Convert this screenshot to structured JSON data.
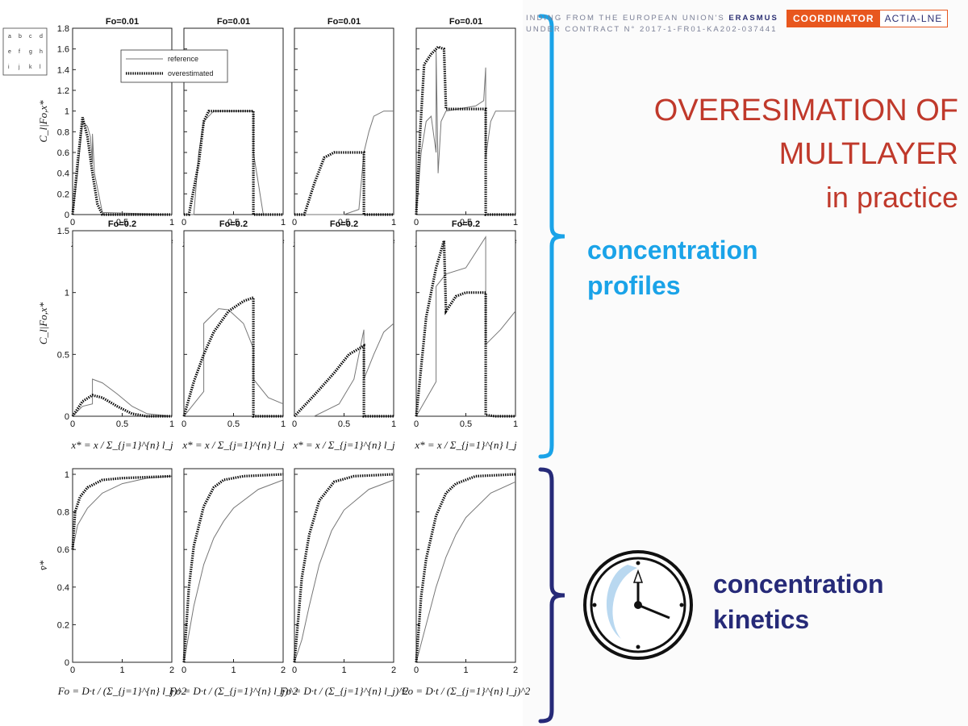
{
  "header": {
    "funding_line1_pre": "INDING FROM THE EUROPEAN UNION'S ",
    "funding_line1_bold": "ERASMUS",
    "funding_line2": "UNDER CONTRACT N° 2017-1-FR01-KA202-037441",
    "coordinator_label": "COORDINATOR",
    "coordinator_value": "ACTIA-LNE"
  },
  "slide": {
    "title_line1": "OVERESIMATION OF",
    "title_line2": "MULTLAYER",
    "title_line3": "in practice",
    "label_profiles_1": "concentration",
    "label_profiles_2": "profiles",
    "label_kinetics_1": "concentration",
    "label_kinetics_2": "kinetics"
  },
  "colors": {
    "title": "#c0392b",
    "profiles_bracket": "#1aa3e8",
    "kinetics_bracket": "#262a78",
    "accent_orange": "#e8571e"
  },
  "icons": {
    "clock": "clock-icon"
  },
  "panel_grid_letters": [
    "a",
    "b",
    "c",
    "d",
    "e",
    "f",
    "g",
    "h",
    "i",
    "j",
    "k",
    "l"
  ],
  "chart_data": {
    "type": "line",
    "legend": [
      "reference",
      "overestimated"
    ],
    "row_titles": [
      "Fo=0.01",
      "Fo=0.2",
      ""
    ],
    "ylabels": [
      "C_l|Fo,x*",
      "C_l|Fo,x*",
      "v̄*"
    ],
    "xlabels": [
      "x* = x / Σ_{j=1}^{n} l_j",
      "x* = x / Σ_{j=1}^{n} l_j",
      "Fo = D·t / (Σ_{j=1}^{n} l_j)^2"
    ],
    "xticks": [
      [
        "0",
        "0.5",
        "1"
      ],
      [
        "0",
        "0.5",
        "1"
      ],
      [
        "0",
        "1",
        "2"
      ]
    ],
    "yticks": [
      [
        "0",
        "0.2",
        "0.4",
        "0.6",
        "0.8",
        "1",
        "1.2",
        "1.4",
        "1.6",
        "1.8"
      ],
      [
        "0",
        "0.5",
        "1",
        "1.5"
      ],
      [
        "0",
        "0.2",
        "0.4",
        "0.6",
        "0.8",
        "1"
      ]
    ],
    "rows": [
      {
        "xlim": [
          0,
          1
        ],
        "ylim": [
          0,
          1.8
        ],
        "panels": [
          {
            "reference": [
              [
                0,
                0
              ],
              [
                0.05,
                0.4
              ],
              [
                0.1,
                0.9
              ],
              [
                0.15,
                0.85
              ],
              [
                0.18,
                0.75
              ],
              [
                0.2,
                0.5
              ],
              [
                0.2,
                0.78
              ],
              [
                0.22,
                0.4
              ],
              [
                0.3,
                0.02
              ],
              [
                1,
                0
              ]
            ],
            "overestimated": [
              [
                0,
                0
              ],
              [
                0.05,
                0.5
              ],
              [
                0.1,
                0.94
              ],
              [
                0.15,
                0.75
              ],
              [
                0.2,
                0.4
              ],
              [
                0.25,
                0.1
              ],
              [
                0.3,
                0
              ],
              [
                1,
                0
              ]
            ]
          },
          {
            "reference": [
              [
                0,
                0
              ],
              [
                0.1,
                0
              ],
              [
                0.15,
                0.6
              ],
              [
                0.2,
                0.9
              ],
              [
                0.3,
                1
              ],
              [
                0.7,
                1
              ],
              [
                0.7,
                0.6
              ],
              [
                0.75,
                0.3
              ],
              [
                0.8,
                0
              ],
              [
                1,
                0
              ]
            ],
            "overestimated": [
              [
                0,
                0
              ],
              [
                0.05,
                0
              ],
              [
                0.15,
                0.5
              ],
              [
                0.2,
                0.9
              ],
              [
                0.25,
                1
              ],
              [
                0.7,
                1
              ],
              [
                0.7,
                0
              ],
              [
                1,
                0
              ]
            ]
          },
          {
            "reference": [
              [
                0,
                0
              ],
              [
                0.5,
                0
              ],
              [
                0.65,
                0.05
              ],
              [
                0.7,
                0.6
              ],
              [
                0.75,
                0.8
              ],
              [
                0.8,
                0.95
              ],
              [
                0.9,
                1
              ],
              [
                1,
                1
              ]
            ],
            "overestimated": [
              [
                0,
                0
              ],
              [
                0.1,
                0
              ],
              [
                0.2,
                0.3
              ],
              [
                0.3,
                0.55
              ],
              [
                0.4,
                0.6
              ],
              [
                0.7,
                0.6
              ],
              [
                0.7,
                0
              ],
              [
                1,
                0
              ]
            ]
          },
          {
            "reference": [
              [
                0,
                0
              ],
              [
                0.05,
                0.6
              ],
              [
                0.1,
                0.9
              ],
              [
                0.15,
                0.95
              ],
              [
                0.2,
                0.6
              ],
              [
                0.2,
                1.6
              ],
              [
                0.22,
                0.4
              ],
              [
                0.25,
                0.9
              ],
              [
                0.3,
                1.0
              ],
              [
                0.6,
                1.05
              ],
              [
                0.68,
                1.1
              ],
              [
                0.7,
                1.42
              ],
              [
                0.7,
                0.55
              ],
              [
                0.75,
                0.9
              ],
              [
                0.8,
                1
              ],
              [
                1,
                1
              ]
            ],
            "overestimated": [
              [
                0,
                0
              ],
              [
                0.04,
                0.8
              ],
              [
                0.08,
                1.45
              ],
              [
                0.15,
                1.55
              ],
              [
                0.22,
                1.62
              ],
              [
                0.28,
                1.6
              ],
              [
                0.3,
                1.02
              ],
              [
                0.7,
                1.02
              ],
              [
                0.7,
                0
              ],
              [
                1,
                0
              ]
            ]
          }
        ]
      },
      {
        "xlim": [
          0,
          1
        ],
        "ylim": [
          0,
          1.5
        ],
        "panels": [
          {
            "reference": [
              [
                0,
                0
              ],
              [
                0.1,
                0.08
              ],
              [
                0.2,
                0.1
              ],
              [
                0.2,
                0.3
              ],
              [
                0.3,
                0.27
              ],
              [
                0.45,
                0.18
              ],
              [
                0.6,
                0.08
              ],
              [
                0.75,
                0.02
              ],
              [
                1,
                0
              ]
            ],
            "overestimated": [
              [
                0,
                0
              ],
              [
                0.1,
                0.12
              ],
              [
                0.2,
                0.17
              ],
              [
                0.3,
                0.15
              ],
              [
                0.45,
                0.08
              ],
              [
                0.6,
                0.02
              ],
              [
                0.75,
                0
              ],
              [
                1,
                0
              ]
            ]
          },
          {
            "reference": [
              [
                0,
                0
              ],
              [
                0.2,
                0.2
              ],
              [
                0.2,
                0.75
              ],
              [
                0.35,
                0.87
              ],
              [
                0.45,
                0.86
              ],
              [
                0.6,
                0.75
              ],
              [
                0.7,
                0.55
              ],
              [
                0.7,
                0.3
              ],
              [
                0.85,
                0.15
              ],
              [
                1,
                0.1
              ]
            ],
            "overestimated": [
              [
                0,
                0
              ],
              [
                0.1,
                0.28
              ],
              [
                0.2,
                0.5
              ],
              [
                0.3,
                0.68
              ],
              [
                0.45,
                0.85
              ],
              [
                0.6,
                0.93
              ],
              [
                0.7,
                0.96
              ],
              [
                0.7,
                0
              ],
              [
                1,
                0
              ]
            ]
          },
          {
            "reference": [
              [
                0,
                0
              ],
              [
                0.2,
                0
              ],
              [
                0.45,
                0.1
              ],
              [
                0.6,
                0.3
              ],
              [
                0.7,
                0.7
              ],
              [
                0.7,
                0.3
              ],
              [
                0.8,
                0.5
              ],
              [
                0.9,
                0.68
              ],
              [
                1,
                0.75
              ]
            ],
            "overestimated": [
              [
                0,
                0
              ],
              [
                0.2,
                0.17
              ],
              [
                0.4,
                0.35
              ],
              [
                0.55,
                0.5
              ],
              [
                0.7,
                0.57
              ],
              [
                0.7,
                0
              ],
              [
                1,
                0
              ]
            ]
          },
          {
            "reference": [
              [
                0,
                0
              ],
              [
                0.2,
                0.28
              ],
              [
                0.2,
                1.05
              ],
              [
                0.3,
                1.15
              ],
              [
                0.5,
                1.2
              ],
              [
                0.7,
                1.45
              ],
              [
                0.7,
                0.58
              ],
              [
                0.85,
                0.7
              ],
              [
                1,
                0.85
              ]
            ],
            "overestimated": [
              [
                0,
                0
              ],
              [
                0.1,
                0.8
              ],
              [
                0.2,
                1.2
              ],
              [
                0.28,
                1.42
              ],
              [
                0.3,
                0.85
              ],
              [
                0.4,
                0.97
              ],
              [
                0.5,
                1.0
              ],
              [
                0.7,
                1.0
              ],
              [
                0.7,
                0.01
              ],
              [
                0.8,
                0
              ],
              [
                1,
                0
              ]
            ]
          }
        ]
      },
      {
        "xlim": [
          0,
          2
        ],
        "ylim": [
          0,
          1.03
        ],
        "panels": [
          {
            "reference": [
              [
                0,
                0.6
              ],
              [
                0.1,
                0.73
              ],
              [
                0.3,
                0.82
              ],
              [
                0.6,
                0.9
              ],
              [
                1,
                0.95
              ],
              [
                1.5,
                0.98
              ],
              [
                2,
                0.99
              ]
            ],
            "overestimated": [
              [
                0,
                0.6
              ],
              [
                0.05,
                0.8
              ],
              [
                0.15,
                0.88
              ],
              [
                0.3,
                0.93
              ],
              [
                0.6,
                0.97
              ],
              [
                1,
                0.98
              ],
              [
                2,
                0.99
              ]
            ]
          },
          {
            "reference": [
              [
                0,
                0
              ],
              [
                0.2,
                0.3
              ],
              [
                0.4,
                0.52
              ],
              [
                0.6,
                0.66
              ],
              [
                0.8,
                0.75
              ],
              [
                1,
                0.82
              ],
              [
                1.5,
                0.92
              ],
              [
                2,
                0.97
              ]
            ],
            "overestimated": [
              [
                0,
                0
              ],
              [
                0.1,
                0.4
              ],
              [
                0.2,
                0.62
              ],
              [
                0.4,
                0.83
              ],
              [
                0.6,
                0.93
              ],
              [
                0.8,
                0.97
              ],
              [
                1.2,
                0.99
              ],
              [
                2,
                1
              ]
            ]
          },
          {
            "reference": [
              [
                0,
                0
              ],
              [
                0.15,
                0.12
              ],
              [
                0.3,
                0.3
              ],
              [
                0.5,
                0.52
              ],
              [
                0.75,
                0.7
              ],
              [
                1,
                0.81
              ],
              [
                1.5,
                0.92
              ],
              [
                2,
                0.97
              ]
            ],
            "overestimated": [
              [
                0,
                0
              ],
              [
                0.15,
                0.45
              ],
              [
                0.3,
                0.68
              ],
              [
                0.5,
                0.86
              ],
              [
                0.8,
                0.96
              ],
              [
                1.2,
                0.99
              ],
              [
                2,
                1
              ]
            ]
          },
          {
            "reference": [
              [
                0,
                0
              ],
              [
                0.2,
                0.2
              ],
              [
                0.4,
                0.4
              ],
              [
                0.6,
                0.56
              ],
              [
                0.8,
                0.68
              ],
              [
                1,
                0.77
              ],
              [
                1.5,
                0.9
              ],
              [
                2,
                0.96
              ]
            ],
            "overestimated": [
              [
                0,
                0
              ],
              [
                0.1,
                0.35
              ],
              [
                0.2,
                0.55
              ],
              [
                0.4,
                0.78
              ],
              [
                0.6,
                0.9
              ],
              [
                0.8,
                0.95
              ],
              [
                1.2,
                0.99
              ],
              [
                2,
                1
              ]
            ]
          }
        ]
      }
    ]
  }
}
